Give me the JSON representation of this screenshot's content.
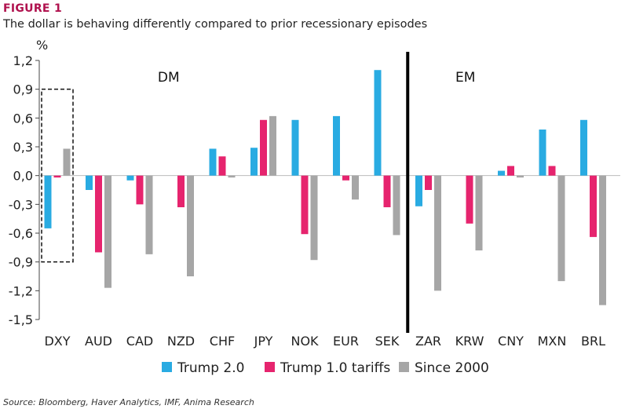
{
  "figure_label": "FIGURE 1",
  "figure_title": "The dollar is behaving differently compared to prior recessionary episodes",
  "source": "Source: Bloomberg, Haver Analytics, IMF, Anima Research",
  "colors": {
    "trump2": "#29abe2",
    "trump1": "#e6246e",
    "since2000": "#a6a6a6",
    "divider": "#000000",
    "title_accent": "#b0124e"
  },
  "chart_data": {
    "type": "bar",
    "title": "The dollar is behaving differently compared to prior recessionary episodes",
    "ylabel": "%",
    "xlabel": "",
    "ylim": [
      -1.5,
      1.2
    ],
    "yticks": [
      1.2,
      0.9,
      0.6,
      0.3,
      0.0,
      -0.3,
      -0.6,
      -0.9,
      -1.2,
      -1.5
    ],
    "ytick_labels": [
      "1,2",
      "0,9",
      "0,6",
      "0,3",
      "0,0",
      "-0,3",
      "-0,6",
      "-0,9",
      "-1,2",
      "-1,5"
    ],
    "categories": [
      "DXY",
      "AUD",
      "CAD",
      "NZD",
      "CHF",
      "JPY",
      "NOK",
      "EUR",
      "SEK",
      "ZAR",
      "KRW",
      "CNY",
      "MXN",
      "BRL"
    ],
    "groups": [
      {
        "label": "DM",
        "from": "DXY",
        "to": "SEK"
      },
      {
        "label": "EM",
        "from": "ZAR",
        "to": "BRL"
      }
    ],
    "highlighted_category": "DXY",
    "legend_position": "bottom",
    "grid": false,
    "series": [
      {
        "name": "Trump 2.0",
        "color": "#29abe2",
        "values": [
          -0.55,
          -0.15,
          -0.05,
          0.0,
          0.28,
          0.29,
          0.58,
          0.62,
          1.1,
          -0.32,
          0.0,
          0.05,
          0.48,
          0.58
        ]
      },
      {
        "name": "Trump 1.0 tariffs",
        "color": "#e6246e",
        "values": [
          -0.02,
          -0.8,
          -0.3,
          -0.33,
          0.2,
          0.58,
          -0.61,
          -0.05,
          -0.33,
          -0.15,
          -0.5,
          0.1,
          0.1,
          -0.64
        ]
      },
      {
        "name": "Since 2000",
        "color": "#a6a6a6",
        "values": [
          0.28,
          -1.17,
          -0.82,
          -1.05,
          -0.02,
          0.62,
          -0.88,
          -0.25,
          -0.62,
          -1.2,
          -0.78,
          -0.02,
          -1.1,
          -1.35
        ]
      }
    ]
  }
}
